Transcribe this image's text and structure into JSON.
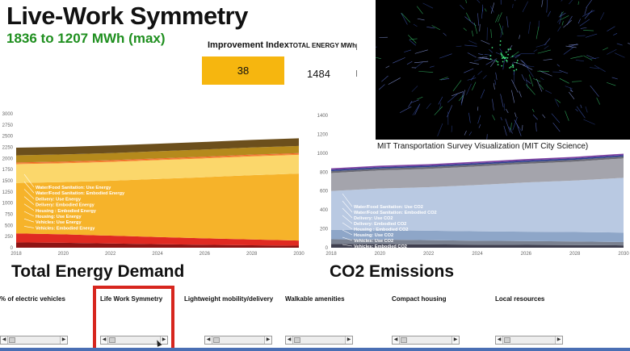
{
  "header": {
    "title": "Live-Work Symmetry",
    "subtitle": "1836 to 1207 MWh (max)"
  },
  "kpis": {
    "improvement_label": "Improvement Index",
    "improvement_value": "38",
    "total_energy_label": "TOTAL ENERGY MWh",
    "total_energy_value": "1484"
  },
  "map": {
    "caption": "MIT Transportation Survey Visualization (MIT City Science)"
  },
  "sections": {
    "energy_title": "Total Energy Demand",
    "co2_title": "CO2 Emissions"
  },
  "colors": {
    "accent_green": "#1f8f1f",
    "kpi_yellow": "#f6b60f",
    "highlight_red": "#d7261e"
  },
  "chart_data": [
    {
      "type": "area",
      "name": "energy",
      "title": "",
      "x": [
        2018,
        2020,
        2022,
        2024,
        2026,
        2028,
        2030
      ],
      "xticks": [
        "2018",
        "2020",
        "2022",
        "2024",
        "2026",
        "2028",
        "2030"
      ],
      "yticks": [
        "0",
        "250",
        "500",
        "750",
        "1000",
        "1250",
        "1500",
        "1750",
        "2000",
        "2250",
        "2500",
        "2750",
        "3000"
      ],
      "ylim": [
        0,
        3000
      ],
      "stacked": true,
      "grid": false,
      "series": [
        {
          "name": "Vehicles: Embodied Energy",
          "color": "#8e1414",
          "values": [
            120,
            110,
            95,
            80,
            65,
            55,
            45
          ]
        },
        {
          "name": "Vehicles: Use Energy",
          "color": "#e02a22",
          "values": [
            200,
            190,
            175,
            160,
            145,
            130,
            115
          ]
        },
        {
          "name": "Housing: Use Energy",
          "color": "#f6b32a",
          "values": [
            1130,
            1170,
            1230,
            1300,
            1370,
            1440,
            1500
          ]
        },
        {
          "name": "Housing : Embodied Energy",
          "color": "#fbd76b",
          "values": [
            420,
            420,
            420,
            420,
            420,
            420,
            420
          ]
        },
        {
          "name": "Delivery: Embodied Energy",
          "color": "#f68b2c",
          "values": [
            20,
            20,
            20,
            20,
            20,
            20,
            20
          ]
        },
        {
          "name": "Delivery: Use Energy",
          "color": "#f2662b",
          "values": [
            20,
            20,
            20,
            20,
            20,
            20,
            20
          ]
        },
        {
          "name": "Water/Food Sanitation: Embodied Energy",
          "color": "#b58a1c",
          "values": [
            160,
            160,
            160,
            160,
            160,
            160,
            160
          ]
        },
        {
          "name": "Water/Food Sanitation: Use Energy",
          "color": "#6c4f1c",
          "values": [
            170,
            170,
            170,
            170,
            170,
            170,
            170
          ]
        }
      ],
      "legend_order": [
        "Water/Food Sanitation: Use Energy",
        "Water/Food Sanitation: Embodied Energy",
        "Delivery: Use Energy",
        "Delivery: Embodied Energy",
        "Housing : Embodied Energy",
        "Housing: Use Energy",
        "Vehicles: Use Energy",
        "Vehicles: Embodied Energy"
      ]
    },
    {
      "type": "area",
      "name": "co2",
      "title": "",
      "x": [
        2018,
        2020,
        2022,
        2024,
        2026,
        2028,
        2030
      ],
      "xticks": [
        "2018",
        "2020",
        "2022",
        "2024",
        "2026",
        "2028",
        "2030"
      ],
      "yticks": [
        "0",
        "200",
        "400",
        "600",
        "800",
        "1000",
        "1200",
        "1400"
      ],
      "ylim": [
        0,
        1400
      ],
      "stacked": true,
      "grid": false,
      "series": [
        {
          "name": "Vehicles: Embodied CO2",
          "color": "#3f3f4f",
          "values": [
            40,
            38,
            35,
            32,
            30,
            28,
            25
          ]
        },
        {
          "name": "Vehicles: Use CO2",
          "color": "#7a8190",
          "values": [
            50,
            48,
            45,
            42,
            40,
            38,
            35
          ]
        },
        {
          "name": "Housing: Use CO2",
          "color": "#8ea6c8",
          "values": [
            100,
            100,
            100,
            100,
            100,
            100,
            100
          ]
        },
        {
          "name": "Housing : Embodied CO2",
          "color": "#b9c9e2",
          "values": [
            410,
            440,
            460,
            490,
            520,
            545,
            580
          ]
        },
        {
          "name": "Delivery: Embodied CO2",
          "color": "#a4a4ac",
          "values": [
            190,
            192,
            194,
            196,
            198,
            200,
            205
          ]
        },
        {
          "name": "Delivery: Use CO2",
          "color": "#6b6b74",
          "values": [
            20,
            20,
            20,
            20,
            20,
            20,
            20
          ]
        },
        {
          "name": "Water/Food Sanitation: Embodied CO2",
          "color": "#2d3f8f",
          "values": [
            15,
            15,
            15,
            15,
            15,
            15,
            15
          ]
        },
        {
          "name": "Water/Food Sanitation: Use CO2",
          "color": "#7b3fa0",
          "values": [
            15,
            15,
            15,
            15,
            15,
            15,
            15
          ]
        }
      ],
      "legend_order": [
        "Water/Food Sanitation: Use CO2",
        "Water/Food Sanitation: Embodied CO2",
        "Delivery: Use CO2",
        "Delivery: Embodied CO2",
        "Housing : Embodied CO2",
        "Housing: Use CO2",
        "Vehicles: Use CO2",
        "Vehicles: Embodied CO2"
      ]
    }
  ],
  "sliders": [
    {
      "label": "% of electric vehicles",
      "value": 0.0
    },
    {
      "label": "Life Work Symmetry",
      "value": 0.0,
      "active": true
    },
    {
      "label": "Lightweight mobility/delivery",
      "value": 0.0
    },
    {
      "label": "Walkable  amenities",
      "value": 0.0
    },
    {
      "label": "Compact housing",
      "value": 0.0
    },
    {
      "label": "Local resources",
      "value": 0.0
    }
  ]
}
